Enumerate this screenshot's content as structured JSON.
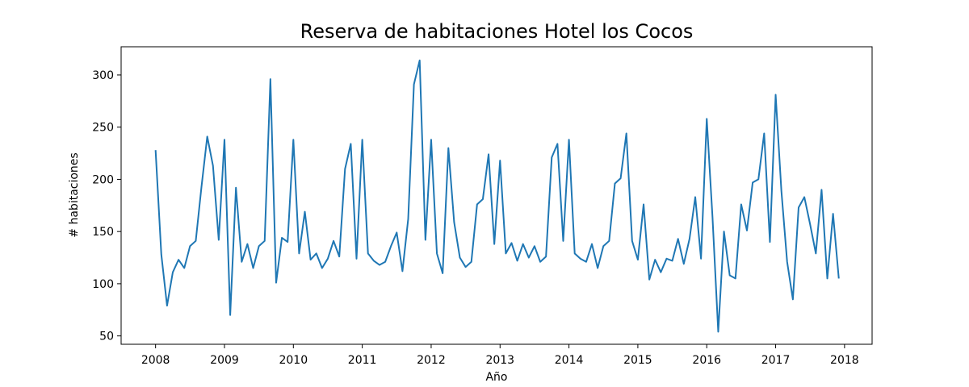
{
  "chart_data": {
    "type": "line",
    "title": "Reserva de habitaciones Hotel los Cocos",
    "xlabel": "Año",
    "ylabel": "# habitaciones",
    "x_start": "2008-01",
    "x_frequency": "monthly",
    "xlim": [
      2007.5,
      2018.4
    ],
    "ylim": [
      42,
      327
    ],
    "x_ticks": [
      2008,
      2009,
      2010,
      2011,
      2012,
      2013,
      2014,
      2015,
      2016,
      2017,
      2018
    ],
    "y_ticks": [
      50,
      100,
      150,
      200,
      250,
      300
    ],
    "grid": false,
    "legend": "none",
    "series": [
      {
        "color": "#1f77b4",
        "values": [
          228,
          128,
          79,
          111,
          123,
          115,
          136,
          141,
          193,
          241,
          213,
          142,
          238,
          70,
          192,
          121,
          138,
          115,
          136,
          141,
          296,
          101,
          144,
          140,
          238,
          129,
          169,
          123,
          129,
          115,
          124,
          141,
          126,
          210,
          234,
          124,
          238,
          129,
          122,
          118,
          121,
          136,
          149,
          112,
          162,
          291,
          314,
          142,
          238,
          129,
          110,
          230,
          159,
          125,
          116,
          121,
          176,
          181,
          224,
          138,
          218,
          129,
          139,
          122,
          138,
          125,
          136,
          121,
          126,
          221,
          234,
          141,
          238,
          129,
          124,
          121,
          138,
          115,
          136,
          141,
          196,
          201,
          244,
          141,
          123,
          176,
          104,
          123,
          111,
          124,
          122,
          143,
          119,
          143,
          183,
          124,
          258,
          164,
          54,
          150,
          108,
          105,
          176,
          151,
          197,
          200,
          244,
          140,
          281,
          189,
          121,
          85,
          173,
          183,
          157,
          129,
          190,
          105,
          167,
          105
        ]
      }
    ]
  }
}
